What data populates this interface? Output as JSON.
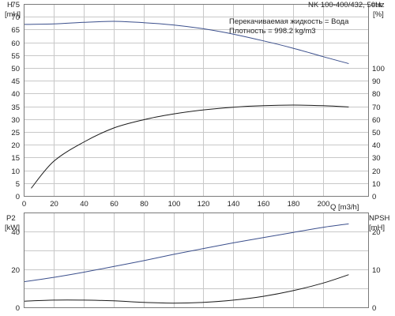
{
  "chart_data": [
    {
      "type": "line",
      "title": "NK 100-400/432, 50Hz",
      "annotations": [
        "Перекачиваемая жидкость = Вода",
        "Плотность = 998.2 kg/m3"
      ],
      "xlabel": "Q [m3/h]",
      "xlim": [
        0,
        230
      ],
      "x_ticks": [
        "0",
        "20",
        "40",
        "60",
        "80",
        "100",
        "120",
        "140",
        "160",
        "180",
        "200"
      ],
      "left_axis": {
        "label_top": "H",
        "label_unit": "[mH]",
        "ylim": [
          0,
          75
        ],
        "ticks": [
          "0",
          "5",
          "10",
          "15",
          "20",
          "25",
          "30",
          "35",
          "40",
          "45",
          "50",
          "55",
          "60",
          "65",
          "70",
          "75"
        ]
      },
      "right_axis": {
        "label_top": "eta",
        "label_unit": "[%]",
        "ylim": [
          0,
          150
        ],
        "ticks": [
          "0",
          "10",
          "20",
          "30",
          "40",
          "50",
          "60",
          "70",
          "80",
          "90",
          "100"
        ]
      },
      "series": [
        {
          "axis": "left",
          "color": "#3b4f8c",
          "x": [
            0,
            20,
            40,
            60,
            80,
            100,
            120,
            140,
            160,
            180,
            200,
            217
          ],
          "y": [
            67,
            67.2,
            67.8,
            68.2,
            67.7,
            66.8,
            65.3,
            63.2,
            60.6,
            57.7,
            54.4,
            51.7
          ]
        },
        {
          "axis": "right",
          "color": "#1a1a1a",
          "x": [
            5,
            20,
            40,
            60,
            80,
            100,
            120,
            140,
            160,
            180,
            200,
            217
          ],
          "y": [
            6,
            27,
            42,
            53,
            59.5,
            64,
            67.2,
            69.3,
            70.5,
            71,
            70.5,
            69.5
          ]
        }
      ]
    },
    {
      "type": "line",
      "xlim": [
        0,
        230
      ],
      "left_axis": {
        "label_top": "P2",
        "label_unit": "[kW]",
        "ylim": [
          0,
          50
        ],
        "ticks": [
          "0",
          "20",
          "40"
        ]
      },
      "right_axis": {
        "label_top": "NPSH",
        "label_unit": "[mH]",
        "ylim": [
          0,
          25
        ],
        "ticks": [
          "0",
          "10",
          "20"
        ]
      },
      "series": [
        {
          "axis": "left",
          "color": "#3b4f8c",
          "x": [
            0,
            20,
            40,
            60,
            80,
            100,
            120,
            140,
            160,
            180,
            200,
            217
          ],
          "y": [
            13.5,
            15.8,
            18.5,
            21.5,
            24.6,
            27.9,
            31,
            34,
            36.8,
            39.5,
            42.2,
            44
          ]
        },
        {
          "axis": "right",
          "color": "#1a1a1a",
          "x": [
            0,
            20,
            40,
            60,
            80,
            100,
            120,
            140,
            160,
            180,
            200,
            217
          ],
          "y": [
            1.6,
            1.9,
            1.9,
            1.7,
            1.3,
            1.1,
            1.3,
            1.9,
            2.9,
            4.4,
            6.4,
            8.6
          ]
        }
      ]
    }
  ]
}
